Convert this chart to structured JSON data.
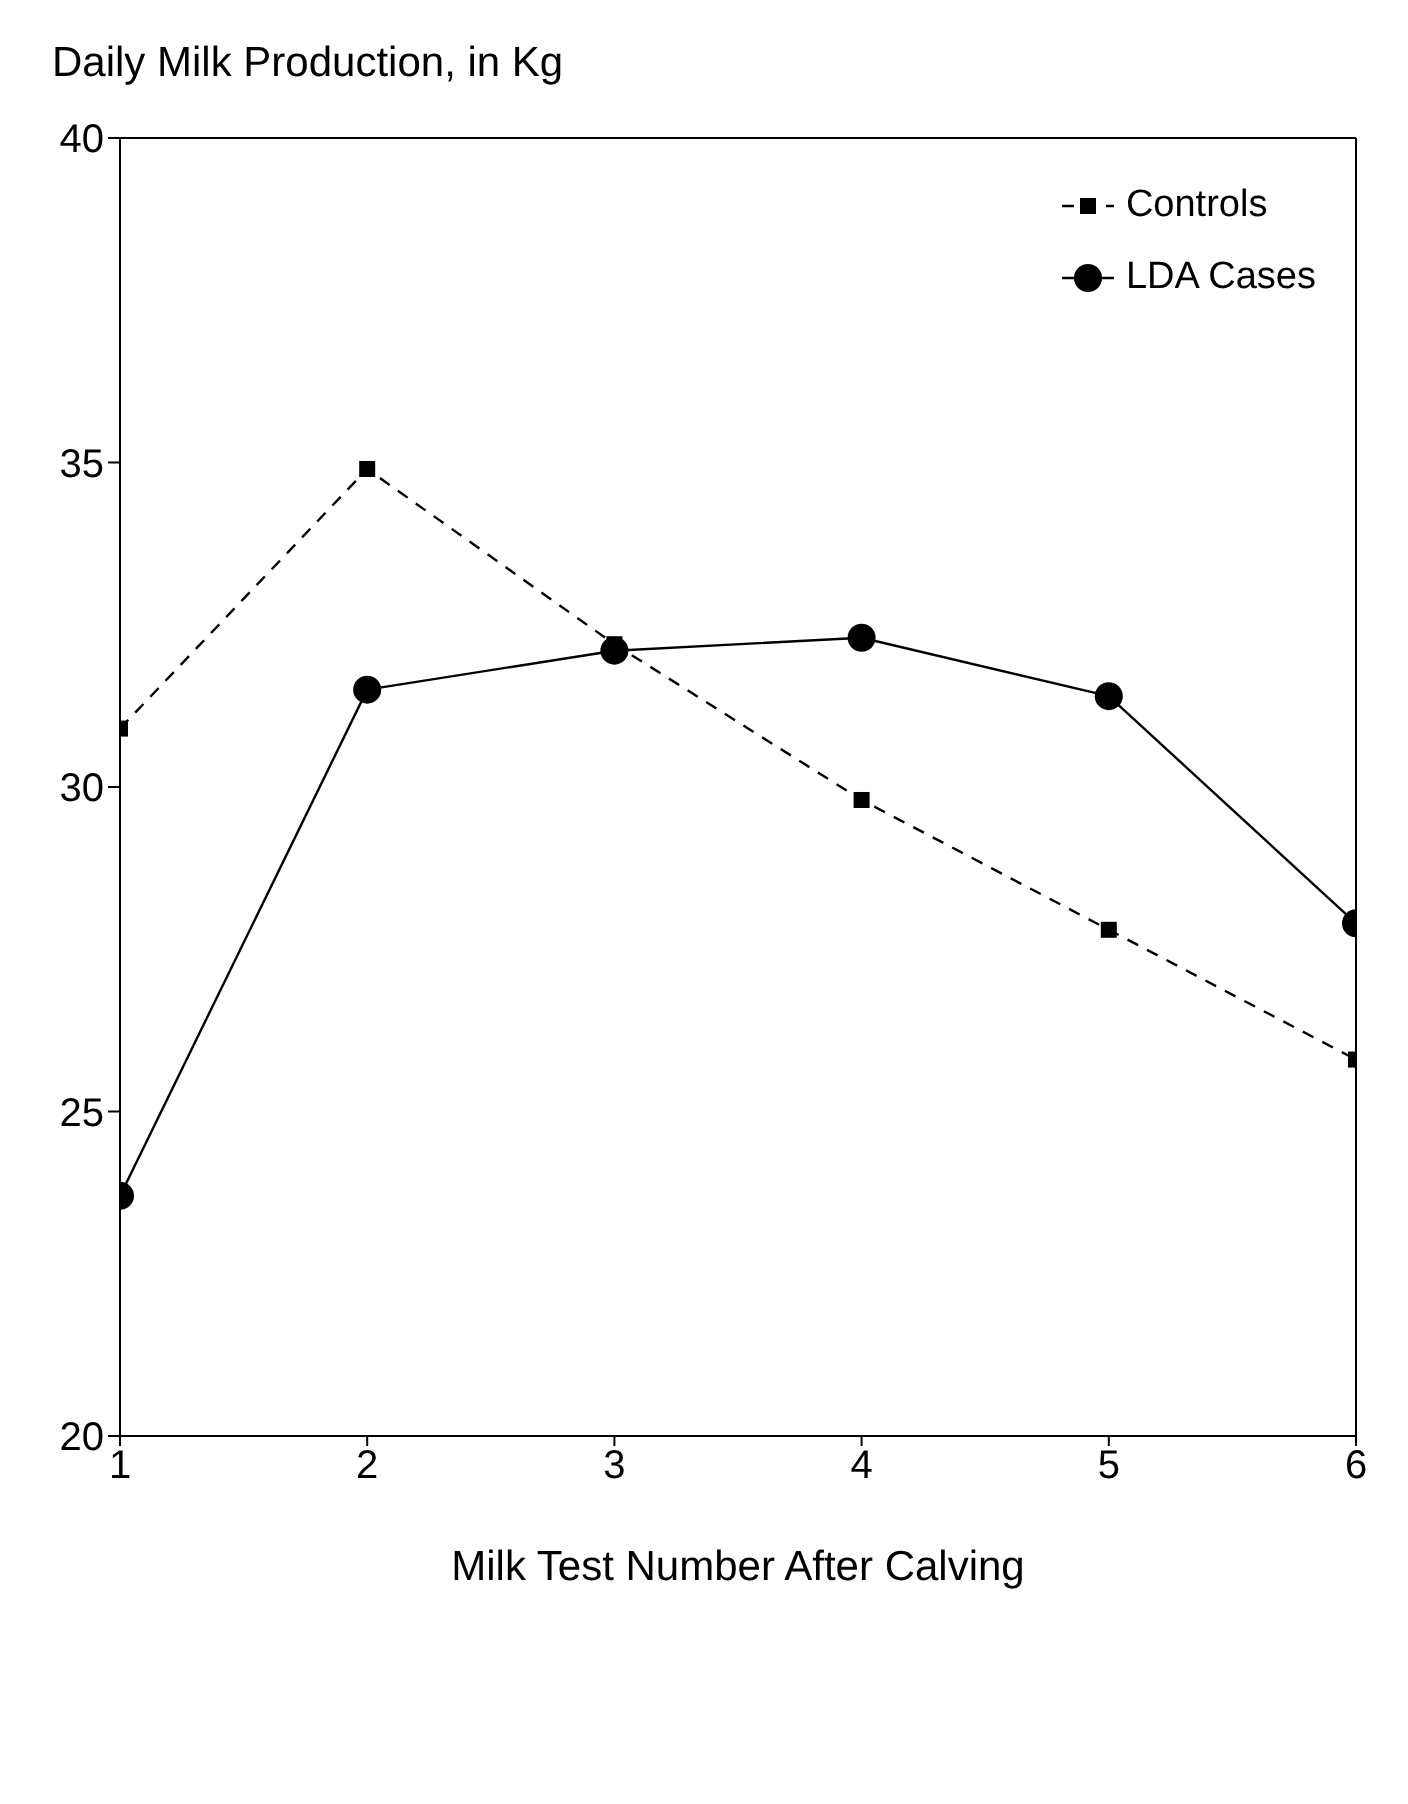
{
  "chart_data": {
    "type": "line",
    "ylabel": "Daily Milk Production, in Kg",
    "xlabel": "Milk Test Number After Calving",
    "x": [
      1,
      2,
      3,
      4,
      5,
      6
    ],
    "series": [
      {
        "name": "Controls",
        "color": "#000000",
        "marker": "square",
        "line_style": "dashed",
        "values": [
          30.9,
          34.9,
          32.2,
          29.8,
          27.8,
          25.8
        ]
      },
      {
        "name": "LDA Cases",
        "color": "#000000",
        "marker": "circle",
        "line_style": "solid",
        "values": [
          23.7,
          31.5,
          32.1,
          32.3,
          31.4,
          27.9
        ]
      }
    ],
    "xlim": [
      1,
      6
    ],
    "xticks": [
      1,
      2,
      3,
      4,
      5,
      6
    ],
    "ylim": [
      20,
      40
    ],
    "yticks": [
      20,
      25,
      30,
      35,
      40
    ],
    "grid": false,
    "legend": "top right"
  }
}
